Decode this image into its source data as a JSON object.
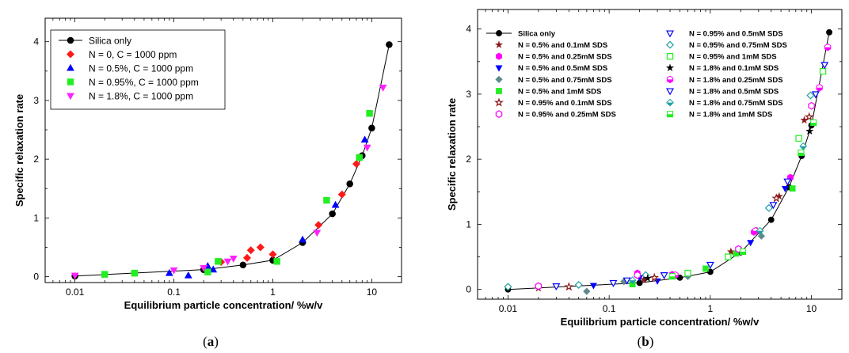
{
  "chart_data": [
    {
      "panel": "a",
      "caption": {
        "open": "(",
        "letter": "a",
        "close": ")"
      },
      "type": "scatter",
      "xscale": "log",
      "xlim": [
        0.005,
        20
      ],
      "ylim": [
        -0.1,
        4.4
      ],
      "x_ticks": [
        0.01,
        0.1,
        1,
        10
      ],
      "x_tick_labels": [
        "0.01",
        "0.1",
        "1",
        "10"
      ],
      "y_ticks": [
        0,
        1,
        2,
        3,
        4
      ],
      "y_tick_labels": [
        "0",
        "1",
        "2",
        "3",
        "4"
      ],
      "xlabel": "Equilibrium particle concentration/ %w/v",
      "ylabel": "Specific relaxation rate",
      "legend_position": "top-left",
      "series": [
        {
          "name": "Silica only",
          "marker": "circle",
          "color": "#000000",
          "filled": true,
          "line": true,
          "x": [
            0.01,
            0.2,
            0.5,
            1,
            2,
            4,
            6,
            8,
            10,
            15
          ],
          "y": [
            0.01,
            0.12,
            0.2,
            0.28,
            0.58,
            1.07,
            1.58,
            2.06,
            2.53,
            3.95
          ]
        },
        {
          "name": "N = 0, C = 1000 ppm",
          "marker": "diamond",
          "color": "#ff1a1a",
          "filled": true,
          "x": [
            0.3,
            0.55,
            0.6,
            0.75,
            1,
            2.9,
            5,
            7
          ],
          "y": [
            0.25,
            0.32,
            0.45,
            0.5,
            0.38,
            0.88,
            1.4,
            1.92
          ]
        },
        {
          "name": "N = 0.5%, C = 1000 ppm",
          "marker": "triangle-up",
          "color": "#0000ff",
          "filled": true,
          "x": [
            0.09,
            0.14,
            0.22,
            0.25,
            2,
            4.3,
            8.5
          ],
          "y": [
            0.06,
            0.02,
            0.18,
            0.12,
            0.63,
            1.22,
            2.33
          ]
        },
        {
          "name": "N = 0.95%, C = 1000 ppm",
          "marker": "square",
          "color": "#22ee22",
          "filled": true,
          "x": [
            0.02,
            0.04,
            0.22,
            0.28,
            1.1,
            3.5,
            7.5,
            9.5
          ],
          "y": [
            0.04,
            0.06,
            0.08,
            0.26,
            0.26,
            1.3,
            2.03,
            2.78
          ]
        },
        {
          "name": "N = 1.8%, C = 1000 ppm",
          "marker": "triangle-down",
          "color": "#ff22ff",
          "filled": true,
          "x": [
            0.01,
            0.1,
            0.2,
            0.35,
            0.4,
            2.8,
            9,
            13
          ],
          "y": [
            0.02,
            0.11,
            0.15,
            0.26,
            0.31,
            0.75,
            2.2,
            3.22
          ]
        }
      ]
    },
    {
      "panel": "b",
      "caption": {
        "open": "(",
        "letter": "b",
        "close": ")"
      },
      "type": "scatter",
      "xscale": "log",
      "xlim": [
        0.005,
        20
      ],
      "ylim": [
        -0.15,
        4.3
      ],
      "x_ticks": [
        0.01,
        0.1,
        1,
        10
      ],
      "x_tick_labels": [
        "0.01",
        "0.1",
        "1",
        "10"
      ],
      "y_ticks": [
        0,
        1,
        2,
        3,
        4
      ],
      "y_tick_labels": [
        "0",
        "1",
        "2",
        "3",
        "4"
      ],
      "xlabel": "Equilibrium particle concentration/ %w/v",
      "ylabel": "Specific relaxation rate",
      "legend_position": "top-left",
      "series": [
        {
          "name": "Silica only",
          "marker": "circle",
          "color": "#000000",
          "filled": true,
          "line": true,
          "x": [
            0.01,
            0.2,
            0.5,
            1,
            2,
            4,
            6,
            8,
            10,
            15
          ],
          "y": [
            0.0,
            0.1,
            0.18,
            0.27,
            0.57,
            1.07,
            1.57,
            2.05,
            2.52,
            3.95
          ]
        },
        {
          "name": "N = 0.5% and 0.1mM SDS",
          "marker": "star",
          "color": "#8b1a1a",
          "filled": true,
          "x": [
            0.02,
            0.22,
            1.6,
            4.8,
            8.5
          ],
          "y": [
            0.02,
            0.15,
            0.58,
            1.43,
            2.6
          ]
        },
        {
          "name": "N = 0.5% and 0.25mM SDS",
          "marker": "hexagon",
          "color": "#ff00ff",
          "filled": true,
          "x": [
            0.19,
            0.42,
            2.7,
            6.2
          ],
          "y": [
            0.25,
            0.23,
            0.88,
            1.72
          ]
        },
        {
          "name": "N = 0.5% and 0.5mM SDS",
          "marker": "triangle-down",
          "color": "#0000ff",
          "filled": true,
          "x": [
            0.07,
            0.2,
            0.3,
            2.5,
            5.5
          ],
          "y": [
            0.06,
            0.18,
            0.13,
            0.72,
            1.55
          ]
        },
        {
          "name": "N = 0.5% and 0.75mM SDS",
          "marker": "diamond",
          "color": "#5f8a8b",
          "filled": true,
          "x": [
            0.06,
            0.14,
            0.6,
            3.2
          ],
          "y": [
            -0.03,
            0.12,
            0.2,
            0.82
          ]
        },
        {
          "name": "N = 0.5% and 1mM SDS",
          "marker": "square",
          "color": "#22ee22",
          "filled": true,
          "x": [
            0.17,
            0.9,
            1.8,
            6.5
          ],
          "y": [
            0.08,
            0.32,
            0.55,
            1.55
          ]
        },
        {
          "name": "N = 0.95% and 0.1mM SDS",
          "marker": "star",
          "color": "#8b1a1a",
          "filled": false,
          "x": [
            0.04,
            0.28,
            4.5,
            9.5
          ],
          "y": [
            0.04,
            0.18,
            1.4,
            2.65
          ]
        },
        {
          "name": "N = 0.95% and 0.25mM SDS",
          "marker": "hexagon",
          "color": "#ff00ff",
          "filled": false,
          "x": [
            0.02,
            0.19,
            1.9,
            10
          ],
          "y": [
            0.05,
            0.22,
            0.62,
            2.82
          ]
        },
        {
          "name": "N = 0.95% and 0.5mM SDS",
          "marker": "triangle-down",
          "color": "#0000ff",
          "filled": false,
          "x": [
            0.03,
            0.11,
            0.35,
            4.2,
            11
          ],
          "y": [
            0.05,
            0.1,
            0.22,
            1.3,
            3.0
          ]
        },
        {
          "name": "N = 0.95% and 0.75mM SDS",
          "marker": "diamond",
          "color": "#20a0a0",
          "filled": false,
          "x": [
            0.01,
            0.05,
            0.23,
            3.8,
            9.8
          ],
          "y": [
            0.04,
            0.07,
            0.22,
            1.25,
            2.98
          ]
        },
        {
          "name": "N = 0.95% and 1mM SDS",
          "marker": "square",
          "color": "#22ee22",
          "filled": false,
          "x": [
            0.6,
            1.5,
            7.5,
            13
          ],
          "y": [
            0.25,
            0.5,
            2.32,
            3.35
          ]
        },
        {
          "name": "N = 1.8% and 0.1mM SDS",
          "marker": "star",
          "color": "#000000",
          "filled": true,
          "x": [
            0.24,
            2.9,
            9.6
          ],
          "y": [
            0.17,
            0.9,
            2.43
          ]
        },
        {
          "name": "N = 1.8% and 0.25mM SDS",
          "marker": "hexagon",
          "color": "#ff00ff",
          "filled": "half",
          "x": [
            0.45,
            2.8,
            12,
            14.5
          ],
          "y": [
            0.22,
            0.9,
            3.1,
            3.72
          ]
        },
        {
          "name": "N = 1.8% and 0.5mM SDS",
          "marker": "triangle-down",
          "color": "#0000ff",
          "filled": false,
          "x": [
            0.15,
            1,
            5.8,
            13.5
          ],
          "y": [
            0.14,
            0.38,
            1.66,
            3.45
          ]
        },
        {
          "name": "N = 1.8% and 0.75mM SDS",
          "marker": "diamond",
          "color": "#20a0a0",
          "filled": "half",
          "x": [
            0.17,
            3.1,
            8.3
          ],
          "y": [
            0.14,
            0.9,
            2.2
          ]
        },
        {
          "name": "N = 1.8% and 1mM SDS",
          "marker": "square",
          "color": "#22ee22",
          "filled": "half",
          "x": [
            0.42,
            2.1,
            7.9,
            10.5
          ],
          "y": [
            0.2,
            0.58,
            2.1,
            2.56
          ]
        }
      ]
    }
  ]
}
